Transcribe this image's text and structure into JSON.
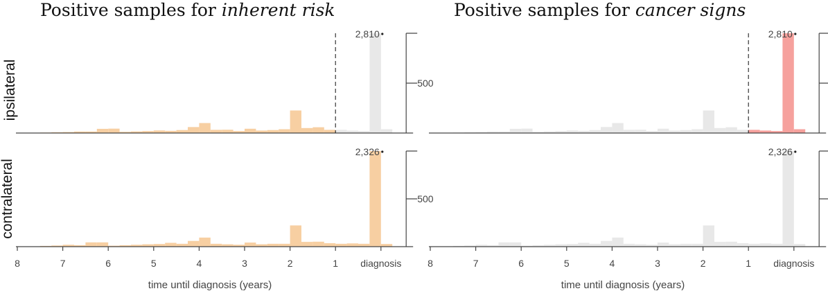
{
  "titles": {
    "left_prefix": "Positive samples for ",
    "left_emph": "inherent risk",
    "right_prefix": "Positive samples for ",
    "right_emph": "cancer signs"
  },
  "row_labels": {
    "top": "ipsilateral",
    "bottom": "contralateral"
  },
  "colors": {
    "orange": "#f7cfa2",
    "gray": "#e8e8e8",
    "red": "#f6a19d",
    "axis": "#444444"
  },
  "chart_data": [
    {
      "type": "bar",
      "title": "Positive samples for inherent risk",
      "row": "ipsilateral",
      "xlabel": "time until diagnosis (years)",
      "x_ticks": [
        "8",
        "7",
        "6",
        "5",
        "4",
        "3",
        "2",
        "1",
        "diagnosis"
      ],
      "y_ticks": [
        500
      ],
      "y_display_max": 1000,
      "peak_label": "2,810",
      "bin_width_years": 0.25,
      "bins_start": [
        -7.5,
        -7.25,
        -7.0,
        -6.75,
        -6.5,
        -6.25,
        -6.0,
        -5.75,
        -5.5,
        -5.25,
        -5.0,
        -4.75,
        -4.5,
        -4.25,
        -4.0,
        -3.75,
        -3.5,
        -3.25,
        -3.0,
        -2.75,
        -2.5,
        -2.25,
        -2.0,
        -1.75,
        -1.5,
        -1.25,
        -1.0,
        -0.75,
        -0.5,
        -0.25,
        0.0
      ],
      "values": [
        5,
        8,
        10,
        15,
        15,
        42,
        44,
        12,
        16,
        20,
        26,
        22,
        30,
        60,
        100,
        32,
        33,
        20,
        43,
        25,
        30,
        38,
        226,
        50,
        58,
        32,
        32,
        25,
        20,
        2810,
        38
      ],
      "highlight_from": -1.0,
      "highlight_to": -0.25,
      "base_color": "orange",
      "after_cutoff_color": "gray",
      "cutoff_years": -1.0
    },
    {
      "type": "bar",
      "title": "Positive samples for cancer signs",
      "row": "ipsilateral",
      "xlabel": "time until diagnosis (years)",
      "x_ticks": [
        "8",
        "7",
        "6",
        "5",
        "4",
        "3",
        "2",
        "1",
        "diagnosis"
      ],
      "y_ticks": [
        500
      ],
      "y_display_max": 1000,
      "peak_label": "2,810",
      "bin_width_years": 0.25,
      "bins_start": [
        -7.5,
        -7.25,
        -7.0,
        -6.75,
        -6.5,
        -6.25,
        -6.0,
        -5.75,
        -5.5,
        -5.25,
        -5.0,
        -4.75,
        -4.5,
        -4.25,
        -4.0,
        -3.75,
        -3.5,
        -3.25,
        -3.0,
        -2.75,
        -2.5,
        -2.25,
        -2.0,
        -1.75,
        -1.5,
        -1.25,
        -1.0,
        -0.75,
        -0.5,
        -0.25,
        0.0
      ],
      "values": [
        5,
        8,
        10,
        15,
        15,
        42,
        44,
        12,
        16,
        20,
        26,
        22,
        30,
        60,
        100,
        32,
        33,
        20,
        43,
        25,
        30,
        38,
        226,
        50,
        58,
        32,
        32,
        25,
        20,
        2810,
        38
      ],
      "base_color": "gray",
      "after_cutoff_color": "red",
      "cutoff_years": -1.0
    },
    {
      "type": "bar",
      "title": "Positive samples for inherent risk",
      "row": "contralateral",
      "xlabel": "time until diagnosis (years)",
      "x_ticks": [
        "8",
        "7",
        "6",
        "5",
        "4",
        "3",
        "2",
        "1",
        "diagnosis"
      ],
      "y_ticks": [
        500
      ],
      "y_display_max": 1000,
      "peak_label": "2,326",
      "bin_width_years": 0.25,
      "bins_start": [
        -7.5,
        -7.25,
        -7.0,
        -6.75,
        -6.5,
        -6.25,
        -6.0,
        -5.75,
        -5.5,
        -5.25,
        -5.0,
        -4.75,
        -4.5,
        -4.25,
        -4.0,
        -3.75,
        -3.5,
        -3.25,
        -3.0,
        -2.75,
        -2.5,
        -2.25,
        -2.0,
        -1.75,
        -1.5,
        -1.25,
        -1.0,
        -0.75,
        -0.5,
        -0.25,
        0.0
      ],
      "values": [
        8,
        12,
        20,
        15,
        45,
        45,
        10,
        15,
        20,
        25,
        28,
        40,
        30,
        60,
        95,
        30,
        25,
        20,
        43,
        25,
        30,
        30,
        222,
        50,
        52,
        36,
        30,
        34,
        30,
        2326,
        28
      ],
      "base_color": "orange",
      "after_cutoff_color": "orange",
      "cutoff_years": null
    },
    {
      "type": "bar",
      "title": "Positive samples for cancer signs",
      "row": "contralateral",
      "xlabel": "time until diagnosis (years)",
      "x_ticks": [
        "8",
        "7",
        "6",
        "5",
        "4",
        "3",
        "2",
        "1",
        "diagnosis"
      ],
      "y_ticks": [
        500
      ],
      "y_display_max": 1000,
      "peak_label": "2,326",
      "bin_width_years": 0.25,
      "bins_start": [
        -7.5,
        -7.25,
        -7.0,
        -6.75,
        -6.5,
        -6.25,
        -6.0,
        -5.75,
        -5.5,
        -5.25,
        -5.0,
        -4.75,
        -4.5,
        -4.25,
        -4.0,
        -3.75,
        -3.5,
        -3.25,
        -3.0,
        -2.75,
        -2.5,
        -2.25,
        -2.0,
        -1.75,
        -1.5,
        -1.25,
        -1.0,
        -0.75,
        -0.5,
        -0.25,
        0.0
      ],
      "values": [
        8,
        12,
        20,
        15,
        45,
        45,
        10,
        15,
        20,
        25,
        28,
        40,
        30,
        60,
        95,
        30,
        25,
        20,
        43,
        25,
        30,
        30,
        222,
        50,
        52,
        36,
        30,
        34,
        30,
        2326,
        28
      ],
      "base_color": "gray",
      "after_cutoff_color": "gray",
      "cutoff_years": null
    }
  ]
}
